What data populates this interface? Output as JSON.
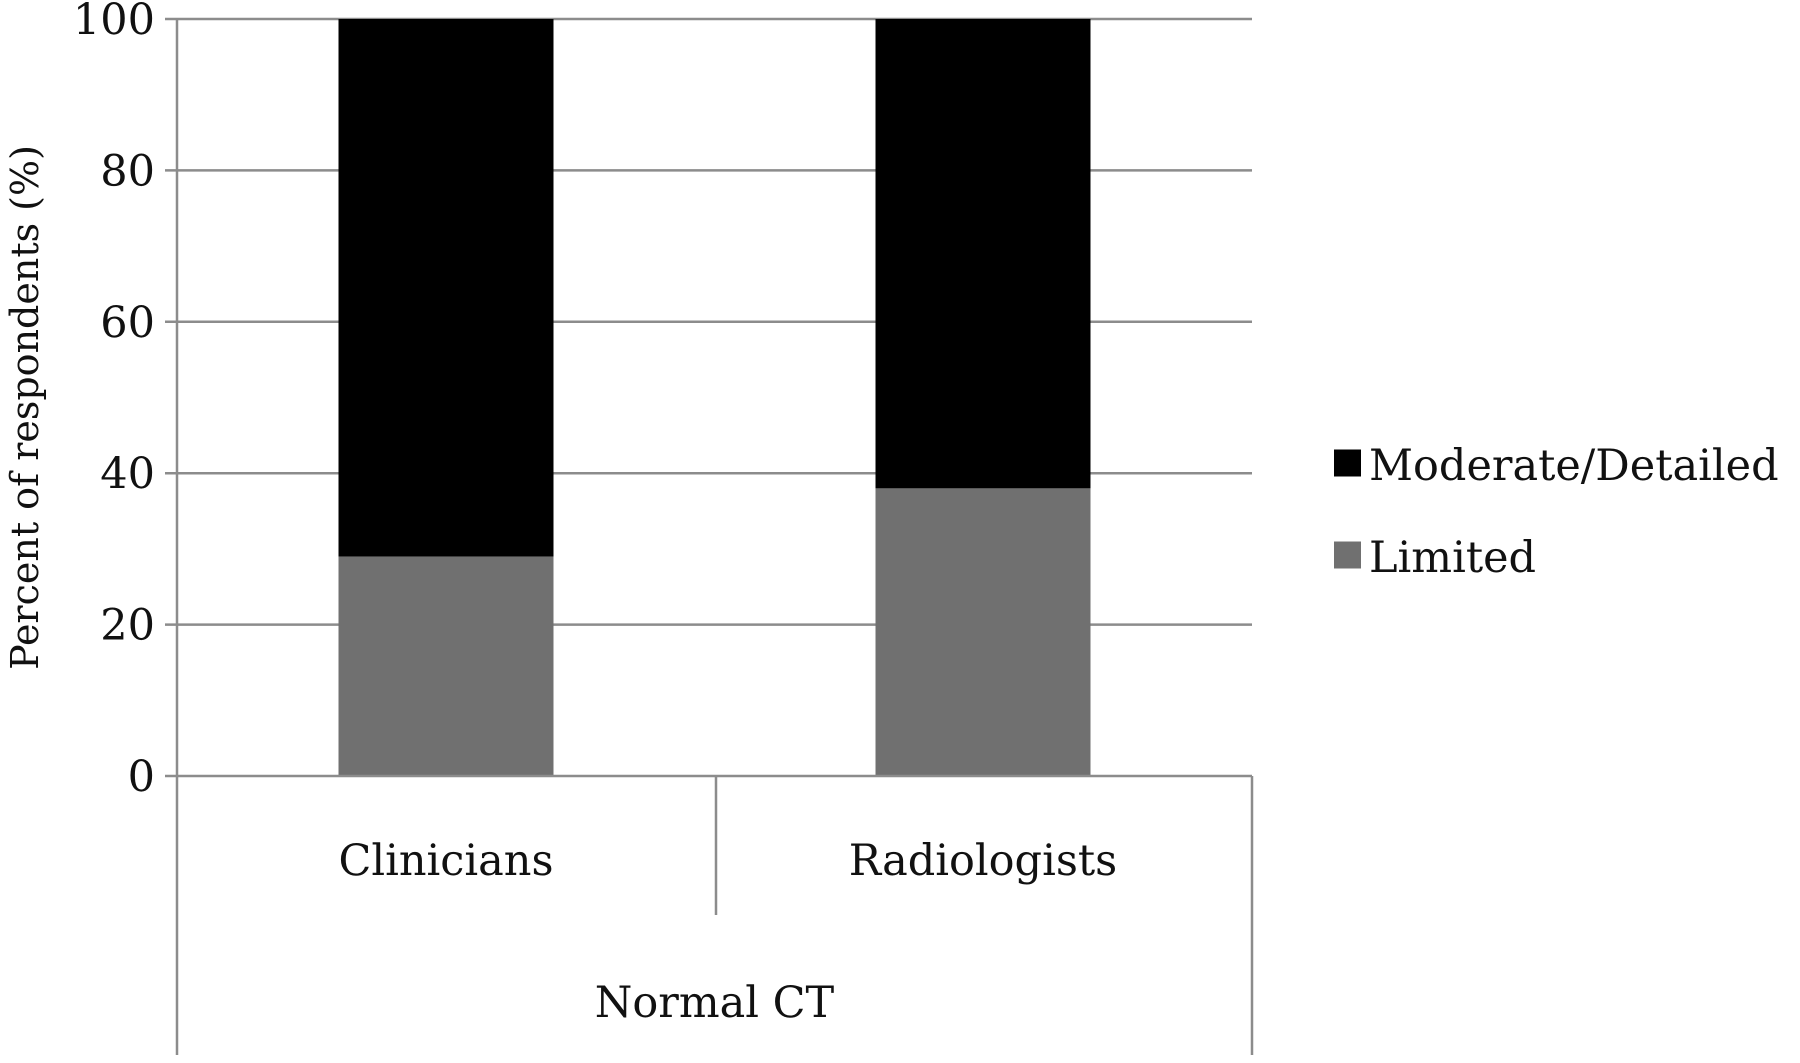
{
  "chart_data": {
    "type": "bar",
    "stacked": true,
    "categories": [
      "Clinicians",
      "Radiologists"
    ],
    "group_label": "Normal CT",
    "series": [
      {
        "name": "Limited",
        "values": [
          29,
          38
        ],
        "color": "#707070"
      },
      {
        "name": "Moderate/Detailed",
        "values": [
          71,
          62
        ],
        "color": "#000000"
      }
    ],
    "legend_order": [
      "Moderate/Detailed",
      "Limited"
    ],
    "legend_position": "right",
    "ylabel": "Percent of respondents (%)",
    "xlabel": "",
    "ylim": [
      0,
      100
    ],
    "yticks": [
      0,
      20,
      40,
      60,
      80,
      100
    ],
    "grid": true
  }
}
